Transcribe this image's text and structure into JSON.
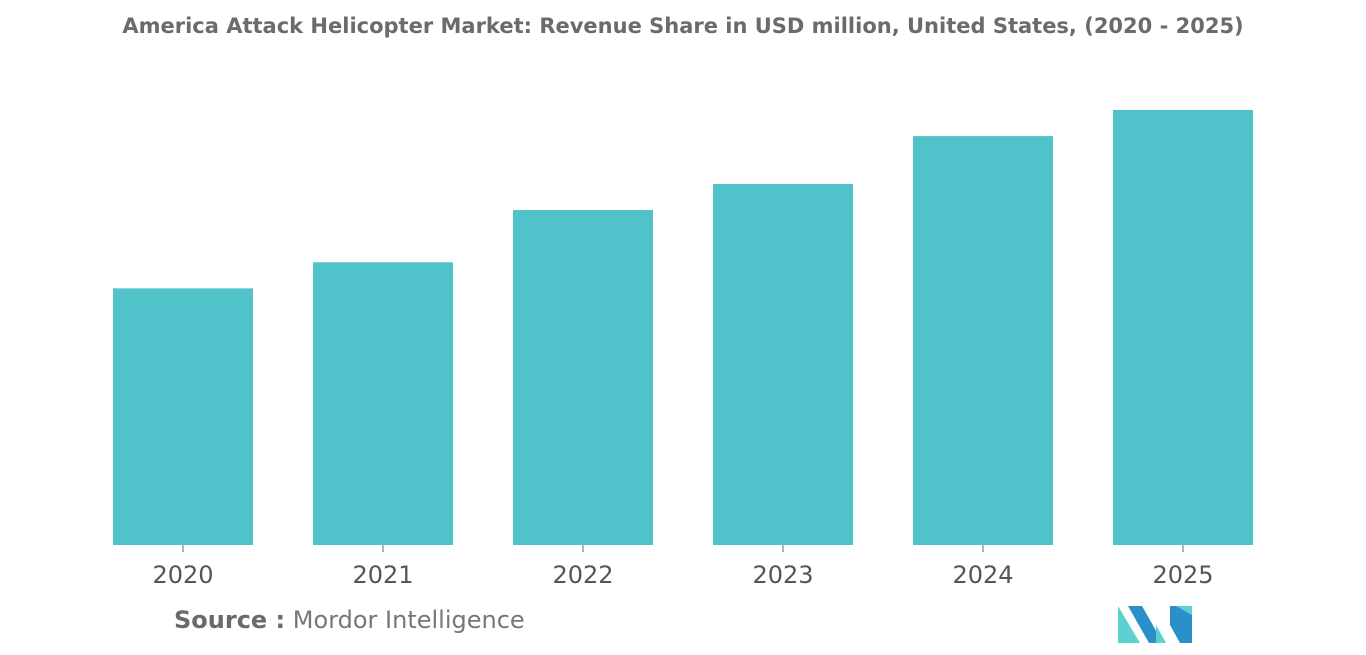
{
  "chart_data": {
    "type": "bar",
    "title": "America Attack Helicopter Market: Revenue Share in USD million, United States, (2020 - 2025)",
    "categories": [
      "2020",
      "2021",
      "2022",
      "2023",
      "2024",
      "2025"
    ],
    "values": [
      59,
      65,
      77,
      83,
      94,
      100
    ],
    "ylim": [
      0,
      100
    ],
    "xlabel": "",
    "ylabel": "",
    "grid": false,
    "bar_color": "#50c2ca"
  },
  "source": {
    "label": "Source :",
    "text": "Mordor Intelligence"
  },
  "logo": {
    "icon": "mordor-intelligence-logo",
    "colors": [
      "#2b8fc9",
      "#5fd0d0"
    ]
  }
}
